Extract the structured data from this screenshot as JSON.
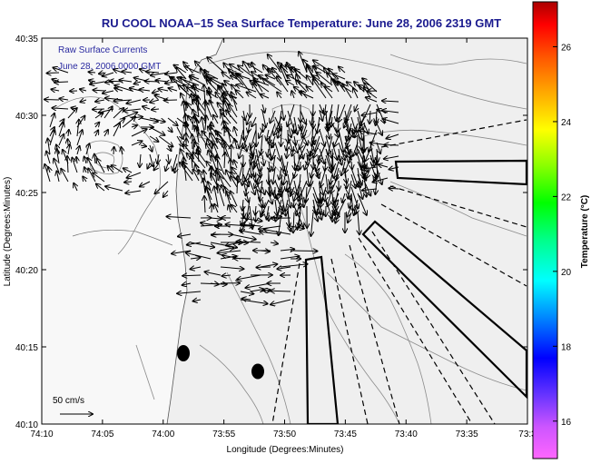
{
  "title": "RU COOL  NOAA–15  Sea Surface Temperature:  June 28, 2006 2319 GMT",
  "map": {
    "xlabel": "Longitude (Degrees:Minutes)",
    "ylabel": "Latitude (Degrees:Minutes)",
    "x_ticks": [
      "74:10",
      "74:05",
      "74:00",
      "73:55",
      "73:50",
      "73:45",
      "73:40",
      "73:35",
      "73:3"
    ],
    "y_ticks": [
      "40:10",
      "40:15",
      "40:20",
      "40:25",
      "40:30",
      "40:35"
    ],
    "overlay_line1": "Raw Surface Currents",
    "overlay_line2": "June 28, 2006 0000 GMT",
    "scale_label": "50 cm/s",
    "land_color": "#f4f4f4",
    "ocean_color": "#ececec"
  },
  "colorbar": {
    "label": "Temperature (°C)",
    "ticks": [
      "26",
      "24",
      "22",
      "20",
      "18",
      "16"
    ],
    "tick_values": [
      26,
      24,
      22,
      20,
      18,
      16
    ],
    "range": [
      15,
      27.2
    ]
  }
}
